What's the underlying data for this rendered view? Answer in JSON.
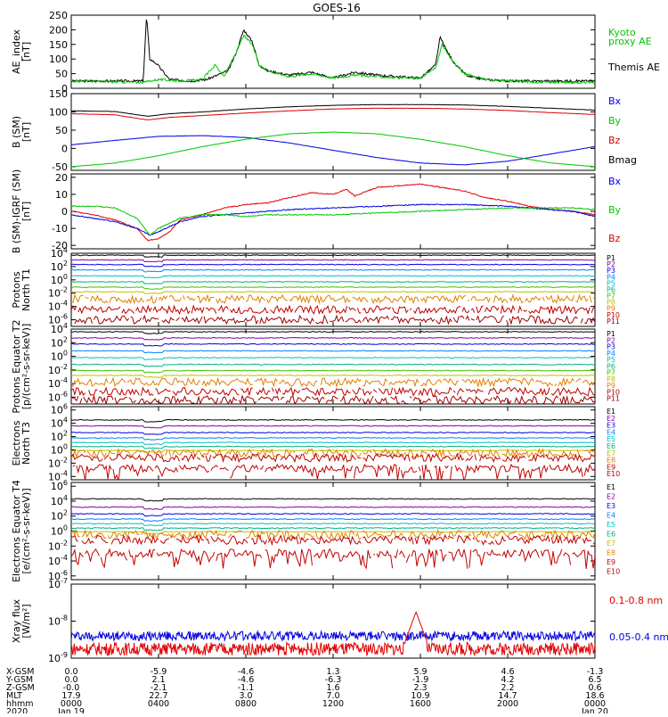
{
  "title": "GOES-16",
  "colors": {
    "black": "#000000",
    "red": "#e00000",
    "blue": "#0000e0",
    "green": "#00c800",
    "p": [
      "#000000",
      "#8000a0",
      "#0000e0",
      "#0080ff",
      "#00c0c0",
      "#00b080",
      "#40c000",
      "#c0c000",
      "#e08000",
      "#c00000",
      "#a00000"
    ]
  },
  "chart_data": [
    {
      "type": "line",
      "id": "ae",
      "ylabel": "AE_index [nT]",
      "ylim": [
        0,
        250
      ],
      "yticks": [
        "0",
        "50",
        "100",
        "150",
        "200",
        "250"
      ],
      "legend": [
        {
          "text": "Kyoto",
          "color": "#00c800"
        },
        {
          "text": "proxy AE",
          "color": "#00c800"
        },
        {
          "text": "Themis AE",
          "color": "#000000"
        }
      ],
      "series": [
        {
          "color": "#000000",
          "x": [
            0,
            2,
            3.3,
            3.45,
            3.6,
            3.9,
            4.5,
            5.5,
            6.2,
            7.2,
            7.6,
            7.9,
            8.3,
            8.6,
            9,
            10,
            11,
            12,
            13,
            14,
            15,
            16,
            16.7,
            16.9,
            17.2,
            17.6,
            18.2,
            19,
            20,
            21,
            22,
            23,
            24
          ],
          "y": [
            25,
            25,
            25,
            250,
            100,
            85,
            30,
            25,
            30,
            60,
            130,
            200,
            160,
            80,
            60,
            45,
            55,
            35,
            55,
            45,
            40,
            35,
            80,
            175,
            130,
            80,
            40,
            30,
            25,
            25,
            25,
            25,
            25
          ]
        },
        {
          "color": "#00c800",
          "x": [
            0,
            2,
            3.3,
            3.6,
            4,
            5,
            6,
            6.6,
            7,
            7.6,
            7.9,
            8.3,
            8.6,
            9,
            10,
            11,
            12,
            13,
            14,
            15,
            16,
            16.7,
            17,
            17.3,
            18,
            19,
            20,
            21,
            22,
            23,
            24
          ],
          "y": [
            25,
            22,
            20,
            25,
            30,
            25,
            30,
            80,
            40,
            130,
            180,
            150,
            80,
            60,
            40,
            50,
            35,
            45,
            40,
            35,
            35,
            70,
            150,
            110,
            50,
            30,
            25,
            22,
            20,
            20,
            20
          ]
        }
      ]
    },
    {
      "type": "line",
      "id": "bsm",
      "ylabel": "B (SM) [nT]",
      "ylim": [
        -60,
        150
      ],
      "yticks": [
        "-50",
        "0",
        "50",
        "100",
        "150"
      ],
      "legend": [
        {
          "text": "Bx",
          "color": "#0000e0"
        },
        {
          "text": "By",
          "color": "#00c800"
        },
        {
          "text": "Bz",
          "color": "#e00000"
        },
        {
          "text": "Bmag",
          "color": "#000000"
        }
      ],
      "series": [
        {
          "color": "#000000",
          "x": [
            0,
            2,
            3.5,
            4.5,
            6,
            8,
            10,
            12,
            14,
            16,
            18,
            20,
            22,
            24
          ],
          "y": [
            103,
            101,
            88,
            95,
            100,
            108,
            114,
            118,
            120,
            120,
            119,
            115,
            110,
            105
          ]
        },
        {
          "color": "#e00000",
          "x": [
            0,
            2,
            3.5,
            4.5,
            6,
            8,
            10,
            12,
            14,
            16,
            18,
            20,
            22,
            24
          ],
          "y": [
            95,
            92,
            78,
            85,
            90,
            97,
            103,
            108,
            110,
            110,
            108,
            104,
            98,
            93
          ]
        },
        {
          "color": "#0000e0",
          "x": [
            0,
            2,
            4,
            6,
            8,
            10,
            12,
            14,
            16,
            18,
            20,
            22,
            24
          ],
          "y": [
            10,
            22,
            33,
            35,
            30,
            15,
            -5,
            -25,
            -40,
            -45,
            -35,
            -15,
            5
          ]
        },
        {
          "color": "#00c800",
          "x": [
            0,
            2,
            4,
            6,
            8,
            10,
            12,
            14,
            16,
            18,
            20,
            22,
            24
          ],
          "y": [
            -50,
            -40,
            -20,
            5,
            25,
            40,
            45,
            40,
            25,
            5,
            -20,
            -40,
            -50
          ]
        }
      ]
    },
    {
      "type": "line",
      "id": "bigrf",
      "ylabel": "B (SM)-IGRF (SM) [nT]",
      "ylim": [
        -22,
        22
      ],
      "yticks": [
        "-20",
        "-10",
        "0",
        "10",
        "20"
      ],
      "legend": [
        {
          "text": "Bx",
          "color": "#0000e0"
        },
        {
          "text": "By",
          "color": "#00c800"
        },
        {
          "text": "Bz",
          "color": "#e00000"
        }
      ],
      "series": [
        {
          "color": "#e00000",
          "x": [
            0,
            1,
            2,
            3,
            3.5,
            4,
            4.5,
            5,
            6,
            7,
            8,
            9,
            10,
            11,
            12,
            12.6,
            13,
            14,
            15,
            16,
            17,
            18,
            19,
            20,
            21,
            22,
            23,
            24
          ],
          "y": [
            0,
            -2,
            -5,
            -10,
            -17,
            -16,
            -12,
            -5,
            -2,
            2,
            4,
            5,
            8,
            11,
            10,
            13,
            9,
            14,
            15,
            16,
            14,
            12,
            8,
            6,
            3,
            1,
            0,
            -2
          ]
        },
        {
          "color": "#0000e0",
          "x": [
            0,
            1,
            2,
            3,
            3.6,
            4,
            5,
            6,
            7,
            8,
            9,
            10,
            12,
            14,
            16,
            18,
            20,
            22,
            23,
            24
          ],
          "y": [
            -2,
            -4,
            -6,
            -10,
            -14,
            -12,
            -6,
            -3,
            -2,
            -1,
            0,
            1,
            2,
            3,
            4,
            4,
            3,
            1,
            0,
            -3
          ]
        },
        {
          "color": "#00c800",
          "x": [
            0,
            1,
            2,
            3,
            3.6,
            4,
            5,
            6,
            7,
            8,
            9,
            10,
            12,
            14,
            16,
            18,
            20,
            22,
            23,
            24
          ],
          "y": [
            3,
            3,
            2,
            -4,
            -14,
            -10,
            -4,
            -2,
            -2,
            -3,
            -2,
            -2,
            -2,
            -1,
            0,
            1,
            2,
            2,
            2,
            1
          ]
        }
      ]
    },
    {
      "type": "line",
      "id": "pn",
      "log": true,
      "ylabel": "Protons North T1",
      "ylim": [
        -7,
        4
      ],
      "yticks": [
        "10^4",
        "10^2",
        "10^0",
        "10^-2",
        "10^-4",
        "10^-6"
      ],
      "tickExp": [
        4,
        2,
        0,
        -2,
        -4,
        -6
      ],
      "legend": [
        {
          "text": "P1"
        },
        {
          "text": "P2"
        },
        {
          "text": "P3"
        },
        {
          "text": "P4"
        },
        {
          "text": "P5"
        },
        {
          "text": "P6"
        },
        {
          "text": "P7"
        },
        {
          "text": "P8"
        },
        {
          "text": "P9"
        },
        {
          "text": "P10"
        },
        {
          "text": "P11"
        }
      ],
      "levels": [
        3.7,
        3.0,
        2.3,
        1.5,
        0.6,
        -0.3,
        -1.1,
        -1.8,
        -2.9,
        -4.5,
        -6.0
      ]
    },
    {
      "type": "line",
      "id": "pe",
      "log": true,
      "ylabel": "Protons Equator T2 [p/(cm²-s-sr-keV)]",
      "ylim": [
        -7,
        4
      ],
      "yticks": [
        "10^4",
        "10^2",
        "10^0",
        "10^-2",
        "10^-4",
        "10^-6"
      ],
      "tickExp": [
        4,
        2,
        0,
        -2,
        -4,
        -6
      ],
      "legend": [
        {
          "text": "P1"
        },
        {
          "text": "P2"
        },
        {
          "text": "P3"
        },
        {
          "text": "P4"
        },
        {
          "text": "P5"
        },
        {
          "text": "P6"
        },
        {
          "text": "P7"
        },
        {
          "text": "P8"
        },
        {
          "text": "P9"
        },
        {
          "text": "P10"
        },
        {
          "text": "P11"
        }
      ],
      "levels": [
        3.6,
        2.7,
        1.8,
        0.8,
        -0.2,
        -1.2,
        -2.1,
        -2.8,
        -3.8,
        -5.2,
        -6.4
      ]
    },
    {
      "type": "line",
      "id": "en",
      "log": true,
      "ylabel": "Electrons North T3",
      "ylim": [
        -4.5,
        6.5
      ],
      "yticks": [
        "10^6",
        "10^4",
        "10^2",
        "10^0",
        "10^-2",
        "10^-4"
      ],
      "tickExp": [
        6,
        4,
        2,
        0,
        -2,
        -4
      ],
      "legend": [
        {
          "text": "E1"
        },
        {
          "text": "E2"
        },
        {
          "text": "E3"
        },
        {
          "text": "E4"
        },
        {
          "text": "E5"
        },
        {
          "text": "E6"
        },
        {
          "text": "E7"
        },
        {
          "text": "E8"
        },
        {
          "text": "E9"
        },
        {
          "text": "E10"
        }
      ],
      "levels": [
        4.5,
        3.6,
        2.6,
        1.8,
        1.1,
        0.5,
        -0.1,
        -0.5,
        -1.2,
        -2.8
      ]
    },
    {
      "type": "line",
      "id": "ee",
      "log": true,
      "ylabel": "Electrons Equator T4 [e/(cm²-s-sr-keV)]",
      "ylim": [
        -6.5,
        6.5
      ],
      "yticks": [
        "10^6",
        "10^4",
        "10^2",
        "10^0",
        "10^-2",
        "10^-4",
        "10^-6"
      ],
      "tickExp": [
        6,
        4,
        2,
        0,
        -2,
        -4,
        -6
      ],
      "legend": [
        {
          "text": "E1"
        },
        {
          "text": "E2"
        },
        {
          "text": "E3"
        },
        {
          "text": "E4"
        },
        {
          "text": "E5"
        },
        {
          "text": "E6"
        },
        {
          "text": "E7"
        },
        {
          "text": "E8"
        },
        {
          "text": "E9"
        },
        {
          "text": "E10"
        }
      ],
      "levels": [
        4.3,
        3.2,
        2.3,
        1.6,
        1.0,
        0.4,
        -0.1,
        -0.5,
        -1.2,
        -3.0
      ]
    },
    {
      "type": "line",
      "id": "xray",
      "log": true,
      "ylabel": "Xray flux [W/m²]",
      "ylim": [
        -9,
        -7
      ],
      "yticks": [
        "10^-7",
        "10^-8",
        "10^-9"
      ],
      "tickExp": [
        -7,
        -8,
        -9
      ],
      "legend": [
        {
          "text": "0.1-0.8 nm",
          "color": "#e00000"
        },
        {
          "text": "0.05-0.4 nm",
          "color": "#0000e0"
        }
      ],
      "series": [
        {
          "color": "#0000e0",
          "level": -8.4,
          "noise": 0.25
        },
        {
          "color": "#e00000",
          "level": -8.75,
          "noise": 0.35,
          "flare": {
            "x": 15.8,
            "peak": -7.75,
            "width": 0.5
          }
        }
      ]
    }
  ],
  "xaxis": {
    "xlim": [
      0,
      24
    ],
    "rows": [
      {
        "label": "X-GSM",
        "values": [
          "0.0",
          "-5.9",
          "-4.6",
          "1.3",
          "5.9",
          "4.6",
          "-1.3"
        ]
      },
      {
        "label": "Y-GSM",
        "values": [
          "0.0",
          "2.1",
          "-4.6",
          "-6.3",
          "-1.9",
          "4.2",
          "6.5"
        ]
      },
      {
        "label": "Z-GSM",
        "values": [
          "-0.0",
          "-2.1",
          "-1.1",
          "1.6",
          "2.3",
          "2.2",
          "0.6"
        ]
      },
      {
        "label": "MLT",
        "values": [
          "17.9",
          "22.7",
          "3.0",
          "7.0",
          "10.9",
          "14.7",
          "18.6"
        ]
      },
      {
        "label": "hhmm",
        "values": [
          "0000",
          "0400",
          "0800",
          "1200",
          "1600",
          "2000",
          "0000"
        ]
      },
      {
        "label": "2020",
        "values": [
          "Jan 19",
          "",
          "",
          "",
          "",
          "",
          "Jan 20"
        ]
      }
    ]
  }
}
